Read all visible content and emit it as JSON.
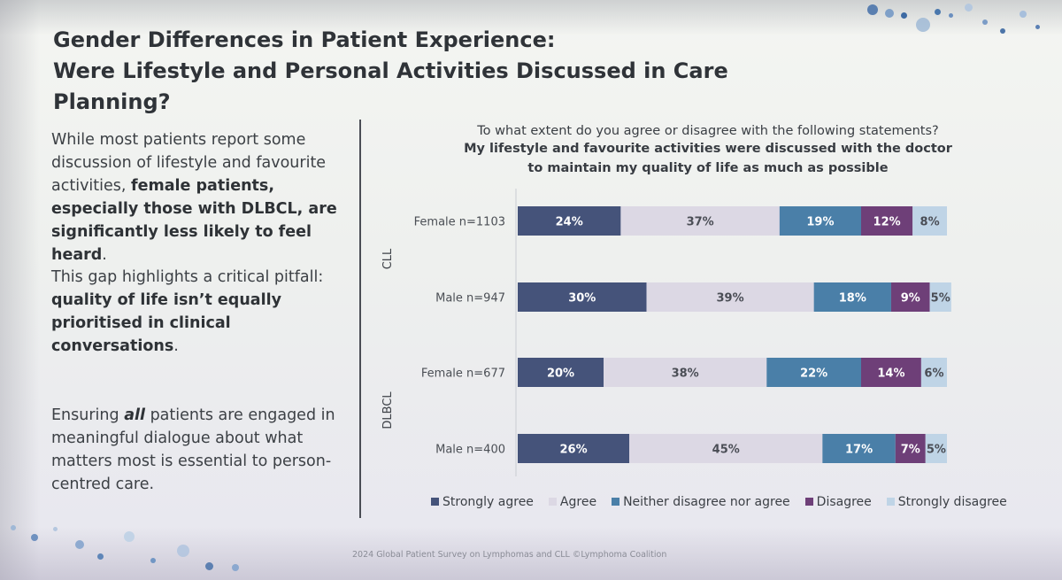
{
  "slide": {
    "title_line1": "Gender Differences in Patient Experience:",
    "title_line2": "Were Lifestyle and Personal Activities Discussed in Care Planning?",
    "para1": {
      "a": "While most patients report some discussion of lifestyle and favourite activities, ",
      "b": "female patients, especially those with DLBCL, are significantly less likely to feel heard",
      "c": "."
    },
    "para2": {
      "a": "This gap highlights a critical pitfall: ",
      "b": "quality of life isn’t equally prioritised in clinical conversations",
      "c": "."
    },
    "para3": {
      "a": "Ensuring ",
      "b": "all",
      "c": " patients are engaged in meaningful dialogue about what matters most is essential to person-centred care."
    },
    "footer": "2024 Global Patient Survey on Lymphomas and CLL ©Lymphoma Coalition"
  },
  "chart_data": {
    "type": "bar",
    "orientation": "horizontal",
    "stacked": "100%",
    "question": "To what extent do you agree or disagree with the following statements?",
    "statement_line1": "My lifestyle and favourite activities were discussed with the doctor",
    "statement_line2": "to maintain my quality of life as much as possible",
    "groups": [
      "CLL",
      "CLL",
      "DLBCL",
      "DLBCL"
    ],
    "group_labels": [
      "CLL",
      "DLBCL"
    ],
    "categories": [
      "Female n=1103",
      "Male n=947",
      "Female n=677",
      "Male n=400"
    ],
    "series": [
      {
        "name": "Strongly agree",
        "color": "#45537a",
        "label_color": "#ffffff",
        "values": [
          24,
          30,
          20,
          26
        ]
      },
      {
        "name": "Agree",
        "color": "#dcd8e4",
        "label_color": "#4a4d55",
        "values": [
          37,
          39,
          38,
          45
        ]
      },
      {
        "name": "Neither disagree nor agree",
        "color": "#4a7fa8",
        "label_color": "#ffffff",
        "values": [
          19,
          18,
          22,
          17
        ]
      },
      {
        "name": "Disagree",
        "color": "#6e3f78",
        "label_color": "#ffffff",
        "values": [
          12,
          9,
          14,
          7
        ]
      },
      {
        "name": "Strongly disagree",
        "color": "#bfd4e6",
        "label_color": "#4a4d55",
        "values": [
          8,
          5,
          6,
          5
        ]
      }
    ],
    "value_suffix": "%",
    "legend_position": "bottom"
  }
}
